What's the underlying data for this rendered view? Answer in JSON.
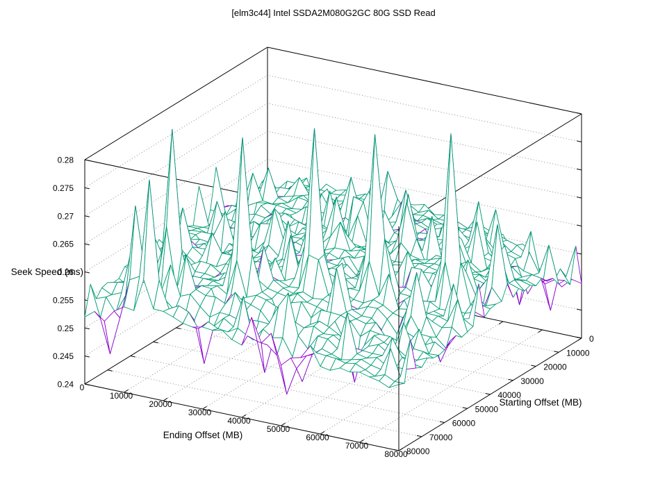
{
  "chart_data": {
    "type": "3d-surface-wireframe",
    "title": "[elm3c44] Intel SSDA2M080G2GC 80G SSD Read",
    "xlabel": "Ending Offset (MB)",
    "ylabel": "Starting Offset (MB)",
    "zlabel": "Seek Speed (ms)",
    "x_range": [
      0,
      80000
    ],
    "y_range": [
      0,
      80000
    ],
    "z_range": [
      0.24,
      0.28
    ],
    "x_ticks": [
      0,
      10000,
      20000,
      30000,
      40000,
      50000,
      60000,
      70000,
      80000
    ],
    "y_ticks": [
      0,
      10000,
      20000,
      30000,
      40000,
      50000,
      60000,
      70000,
      80000
    ],
    "z_ticks": [
      0.24,
      0.245,
      0.25,
      0.255,
      0.26,
      0.265,
      0.27,
      0.275,
      0.28
    ],
    "grid": true,
    "legend": "none",
    "mesh_cells": 32,
    "colors": {
      "surface_top": "#9400D3",
      "surface_underside": "#009E73",
      "axis": "#000000",
      "grid": "#8a8a8a",
      "background": "#ffffff"
    },
    "z_grid_coarse": {
      "comment": "estimated seek speed (ms) at 10000 MB grid steps; rows = Starting Offset 0..80000, cols = Ending Offset 0..80000",
      "x": [
        0,
        10000,
        20000,
        30000,
        40000,
        50000,
        60000,
        70000,
        80000
      ],
      "y": [
        0,
        10000,
        20000,
        30000,
        40000,
        50000,
        60000,
        70000,
        80000
      ],
      "z": [
        [
          0.2565,
          0.2575,
          0.257,
          0.258,
          0.2575,
          0.2565,
          0.256,
          0.252,
          0.249
        ],
        [
          0.257,
          0.258,
          0.2575,
          0.257,
          0.258,
          0.2575,
          0.2565,
          0.2545,
          0.2525
        ],
        [
          0.2565,
          0.2575,
          0.2585,
          0.2575,
          0.257,
          0.258,
          0.257,
          0.256,
          0.255
        ],
        [
          0.257,
          0.2565,
          0.2575,
          0.2585,
          0.2575,
          0.257,
          0.258,
          0.2565,
          0.2555
        ],
        [
          0.2565,
          0.258,
          0.257,
          0.2575,
          0.2585,
          0.2575,
          0.257,
          0.256,
          0.2545
        ],
        [
          0.257,
          0.2565,
          0.258,
          0.257,
          0.2575,
          0.257,
          0.256,
          0.255,
          0.254
        ],
        [
          0.256,
          0.2575,
          0.2565,
          0.258,
          0.257,
          0.256,
          0.255,
          0.254,
          0.253
        ],
        [
          0.2555,
          0.2565,
          0.2575,
          0.256,
          0.255,
          0.2555,
          0.254,
          0.253,
          0.2525
        ],
        [
          0.2525,
          0.2555,
          0.256,
          0.2545,
          0.2535,
          0.253,
          0.2525,
          0.252,
          0.2515
        ]
      ]
    },
    "peaks": [
      {
        "x": 14000,
        "y": 68000,
        "z": 0.2845
      },
      {
        "x": 29000,
        "y": 62000,
        "z": 0.284
      },
      {
        "x": 43000,
        "y": 52000,
        "z": 0.285
      },
      {
        "x": 56000,
        "y": 47000,
        "z": 0.2845
      },
      {
        "x": 69000,
        "y": 41000,
        "z": 0.285
      },
      {
        "x": 16000,
        "y": 78000,
        "z": 0.278
      },
      {
        "x": 10000,
        "y": 75000,
        "z": 0.272
      },
      {
        "x": 78000,
        "y": 33000,
        "z": 0.268
      },
      {
        "x": 50000,
        "y": 25000,
        "z": 0.266
      },
      {
        "x": 24000,
        "y": 40000,
        "z": 0.265
      },
      {
        "x": 62000,
        "y": 15000,
        "z": 0.2655
      },
      {
        "x": 36000,
        "y": 30000,
        "z": 0.266
      },
      {
        "x": 8000,
        "y": 50000,
        "z": 0.265
      },
      {
        "x": 70000,
        "y": 55000,
        "z": 0.264
      },
      {
        "x": 30000,
        "y": 15000,
        "z": 0.265
      }
    ],
    "dips": [
      {
        "x": 40000,
        "y": 70000,
        "z": 0.2455
      },
      {
        "x": 28000,
        "y": 74000,
        "z": 0.2465
      },
      {
        "x": 61000,
        "y": 66000,
        "z": 0.2455
      },
      {
        "x": 12000,
        "y": 60000,
        "z": 0.249
      },
      {
        "x": 75000,
        "y": 5000,
        "z": 0.2455
      },
      {
        "x": 70000,
        "y": 11000,
        "z": 0.247
      },
      {
        "x": 4000,
        "y": 78000,
        "z": 0.2455
      },
      {
        "x": 52000,
        "y": 76000,
        "z": 0.247
      },
      {
        "x": 66000,
        "y": 58000,
        "z": 0.2465
      },
      {
        "x": 47000,
        "y": 64000,
        "z": 0.2475
      },
      {
        "x": 49000,
        "y": 78000,
        "z": 0.245
      }
    ]
  }
}
